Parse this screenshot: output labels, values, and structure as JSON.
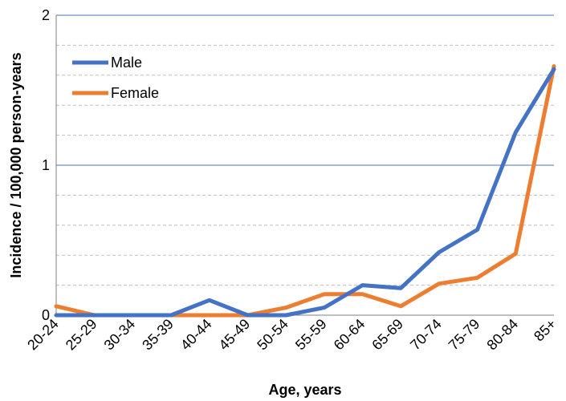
{
  "chart_data": {
    "type": "line",
    "categories": [
      "20-24",
      "25-29",
      "30-34",
      "35-39",
      "40-44",
      "45-49",
      "50-54",
      "55-59",
      "60-64",
      "65-69",
      "70-74",
      "75-79",
      "80-84",
      "85+"
    ],
    "series": [
      {
        "name": "Male",
        "color": "#4472C4",
        "values": [
          0,
          0,
          0,
          0,
          0.1,
          0,
          0,
          0.05,
          0.2,
          0.18,
          0.42,
          0.57,
          1.22,
          1.64
        ]
      },
      {
        "name": "Female",
        "color": "#ED7D31",
        "values": [
          0.06,
          0,
          0,
          0,
          0,
          0,
          0.05,
          0.14,
          0.14,
          0.06,
          0.21,
          0.25,
          0.41,
          1.66
        ]
      }
    ],
    "title": "",
    "xlabel": "Age, years",
    "ylabel": "Incidence / 100,000 person-years",
    "ylim": [
      0,
      2
    ],
    "yticks": [
      0,
      1,
      2
    ],
    "minor_grid_step": 0.2,
    "legend": "top-left",
    "grid": true
  }
}
